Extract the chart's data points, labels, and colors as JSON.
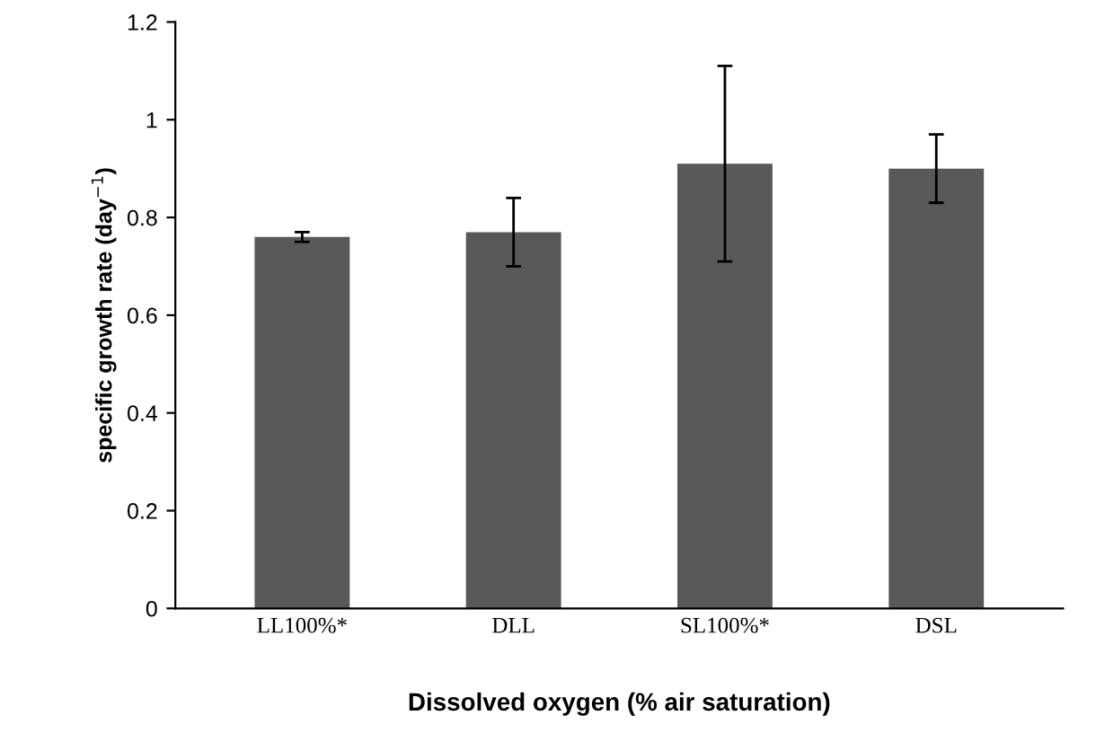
{
  "chart_data": {
    "type": "bar",
    "categories": [
      "LL100%*",
      "DLL",
      "SL100%*",
      "DSL"
    ],
    "values": [
      0.76,
      0.77,
      0.91,
      0.9
    ],
    "errors": [
      0.01,
      0.07,
      0.2,
      0.07
    ],
    "color": "#595959",
    "xlabel": "Dissolved oxygen (% air saturation)",
    "ylabel": "specific growth rate (day$^{−1}$)",
    "ylim": [
      0,
      1.2
    ],
    "yticks": [
      0,
      0.2,
      0.4,
      0.6,
      0.8,
      1,
      1.2
    ],
    "grid": false
  }
}
